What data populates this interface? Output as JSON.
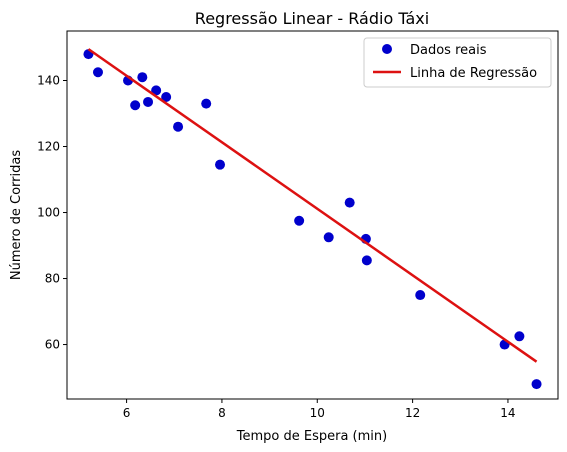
{
  "chart_data": {
    "type": "scatter",
    "title": "Regressão Linear - Rádio Táxi",
    "xlabel": "Tempo de Espera (min)",
    "ylabel": "Número de Corridas",
    "xlim": [
      4.75,
      15.05
    ],
    "ylim": [
      43.5,
      155
    ],
    "xticks": [
      6,
      8,
      10,
      12,
      14
    ],
    "yticks": [
      60,
      80,
      100,
      120,
      140
    ],
    "grid": false,
    "legend_position": "top-right",
    "series": [
      {
        "name": "Dados reais",
        "kind": "scatter",
        "color": "#0000cc",
        "points": [
          {
            "x": 5.2,
            "y": 148
          },
          {
            "x": 5.4,
            "y": 142.5
          },
          {
            "x": 6.03,
            "y": 140
          },
          {
            "x": 6.18,
            "y": 132.5
          },
          {
            "x": 6.33,
            "y": 141
          },
          {
            "x": 6.45,
            "y": 133.5
          },
          {
            "x": 6.62,
            "y": 137
          },
          {
            "x": 6.83,
            "y": 135
          },
          {
            "x": 7.08,
            "y": 126
          },
          {
            "x": 7.67,
            "y": 133
          },
          {
            "x": 7.96,
            "y": 114.5
          },
          {
            "x": 9.62,
            "y": 97.5
          },
          {
            "x": 10.24,
            "y": 92.5
          },
          {
            "x": 10.68,
            "y": 103
          },
          {
            "x": 11.02,
            "y": 92
          },
          {
            "x": 11.04,
            "y": 85.5
          },
          {
            "x": 12.16,
            "y": 75
          },
          {
            "x": 13.93,
            "y": 60
          },
          {
            "x": 14.24,
            "y": 62.5
          },
          {
            "x": 14.6,
            "y": 48
          }
        ]
      },
      {
        "name": "Linha de Regressão",
        "kind": "line",
        "color": "#dd1111",
        "points": [
          {
            "x": 5.2,
            "y": 149.5
          },
          {
            "x": 14.6,
            "y": 54.8
          }
        ]
      }
    ]
  }
}
